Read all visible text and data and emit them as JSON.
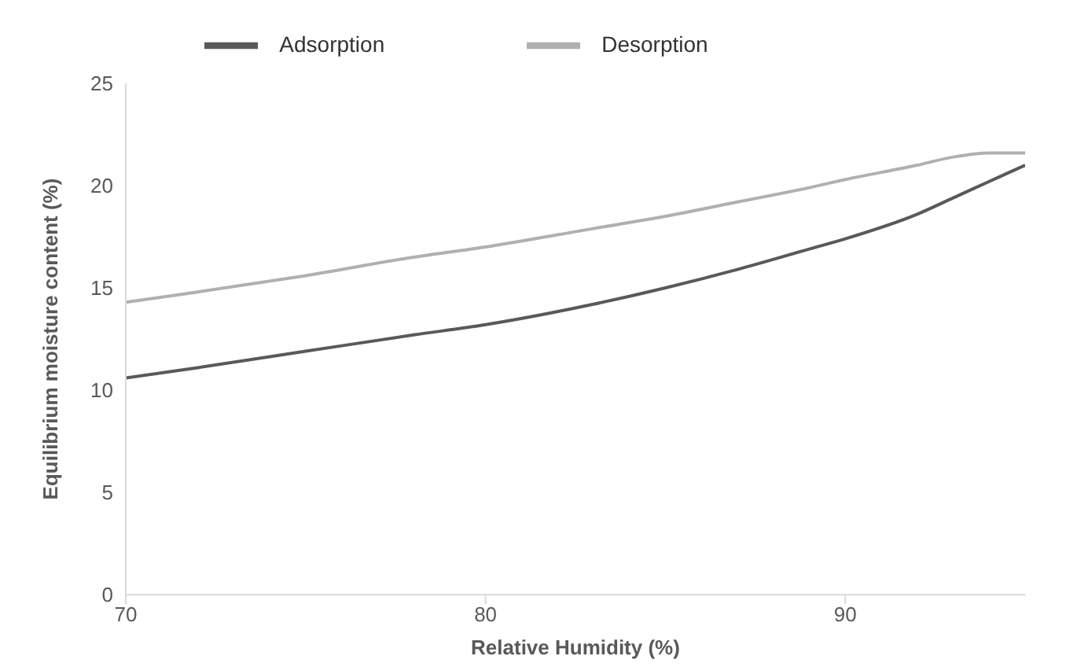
{
  "chart_data": {
    "type": "line",
    "xlabel": "Relative Humidity (%)",
    "ylabel": "Equilibrium moisture content (%)",
    "x": [
      70,
      72,
      75,
      78,
      80,
      83,
      85,
      87,
      89,
      90,
      92,
      93,
      94,
      95
    ],
    "series": [
      {
        "name": "Adsorption",
        "color": "#595959",
        "values": [
          10.6,
          11.1,
          11.9,
          12.7,
          13.2,
          14.2,
          15.0,
          15.9,
          16.9,
          17.4,
          18.6,
          19.4,
          20.2,
          21.0
        ]
      },
      {
        "name": "Desorption",
        "color": "#b0b0b0",
        "values": [
          14.3,
          14.8,
          15.6,
          16.5,
          17.0,
          17.9,
          18.5,
          19.2,
          19.9,
          20.3,
          21.0,
          21.4,
          21.6,
          21.6
        ]
      }
    ],
    "xlim": [
      70,
      95
    ],
    "xticks": [
      70,
      80,
      90
    ],
    "ylim": [
      0,
      25
    ],
    "yticks": [
      0,
      5,
      10,
      15,
      20,
      25
    ],
    "grid": false,
    "legend": "top",
    "marker": "none",
    "line_style": "solid"
  }
}
